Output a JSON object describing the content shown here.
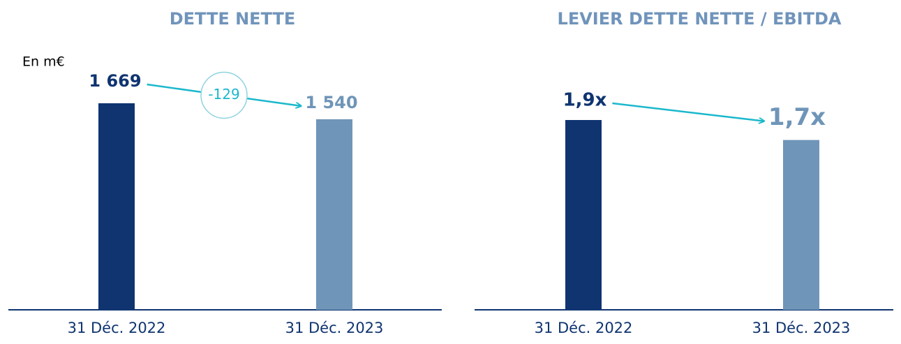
{
  "chart_data": [
    {
      "type": "bar",
      "title": "DETTE NETTE",
      "unit_label": "En m€",
      "categories": [
        "31 Déc. 2022",
        "31 Déc. 2023"
      ],
      "values": [
        1669,
        1540
      ],
      "value_labels": [
        "1 669",
        "1 540"
      ],
      "colors": [
        "#0f3470",
        "#6f95b8"
      ],
      "annotation": "-129"
    },
    {
      "type": "bar",
      "title": "LEVIER DETTE NETTE / EBITDA",
      "categories": [
        "31 Déc. 2022",
        "31 Déc. 2023"
      ],
      "values": [
        1.9,
        1.7
      ],
      "value_labels": [
        "1,9x",
        "1,7x"
      ],
      "colors": [
        "#0f3470",
        "#6f95b8"
      ]
    }
  ]
}
